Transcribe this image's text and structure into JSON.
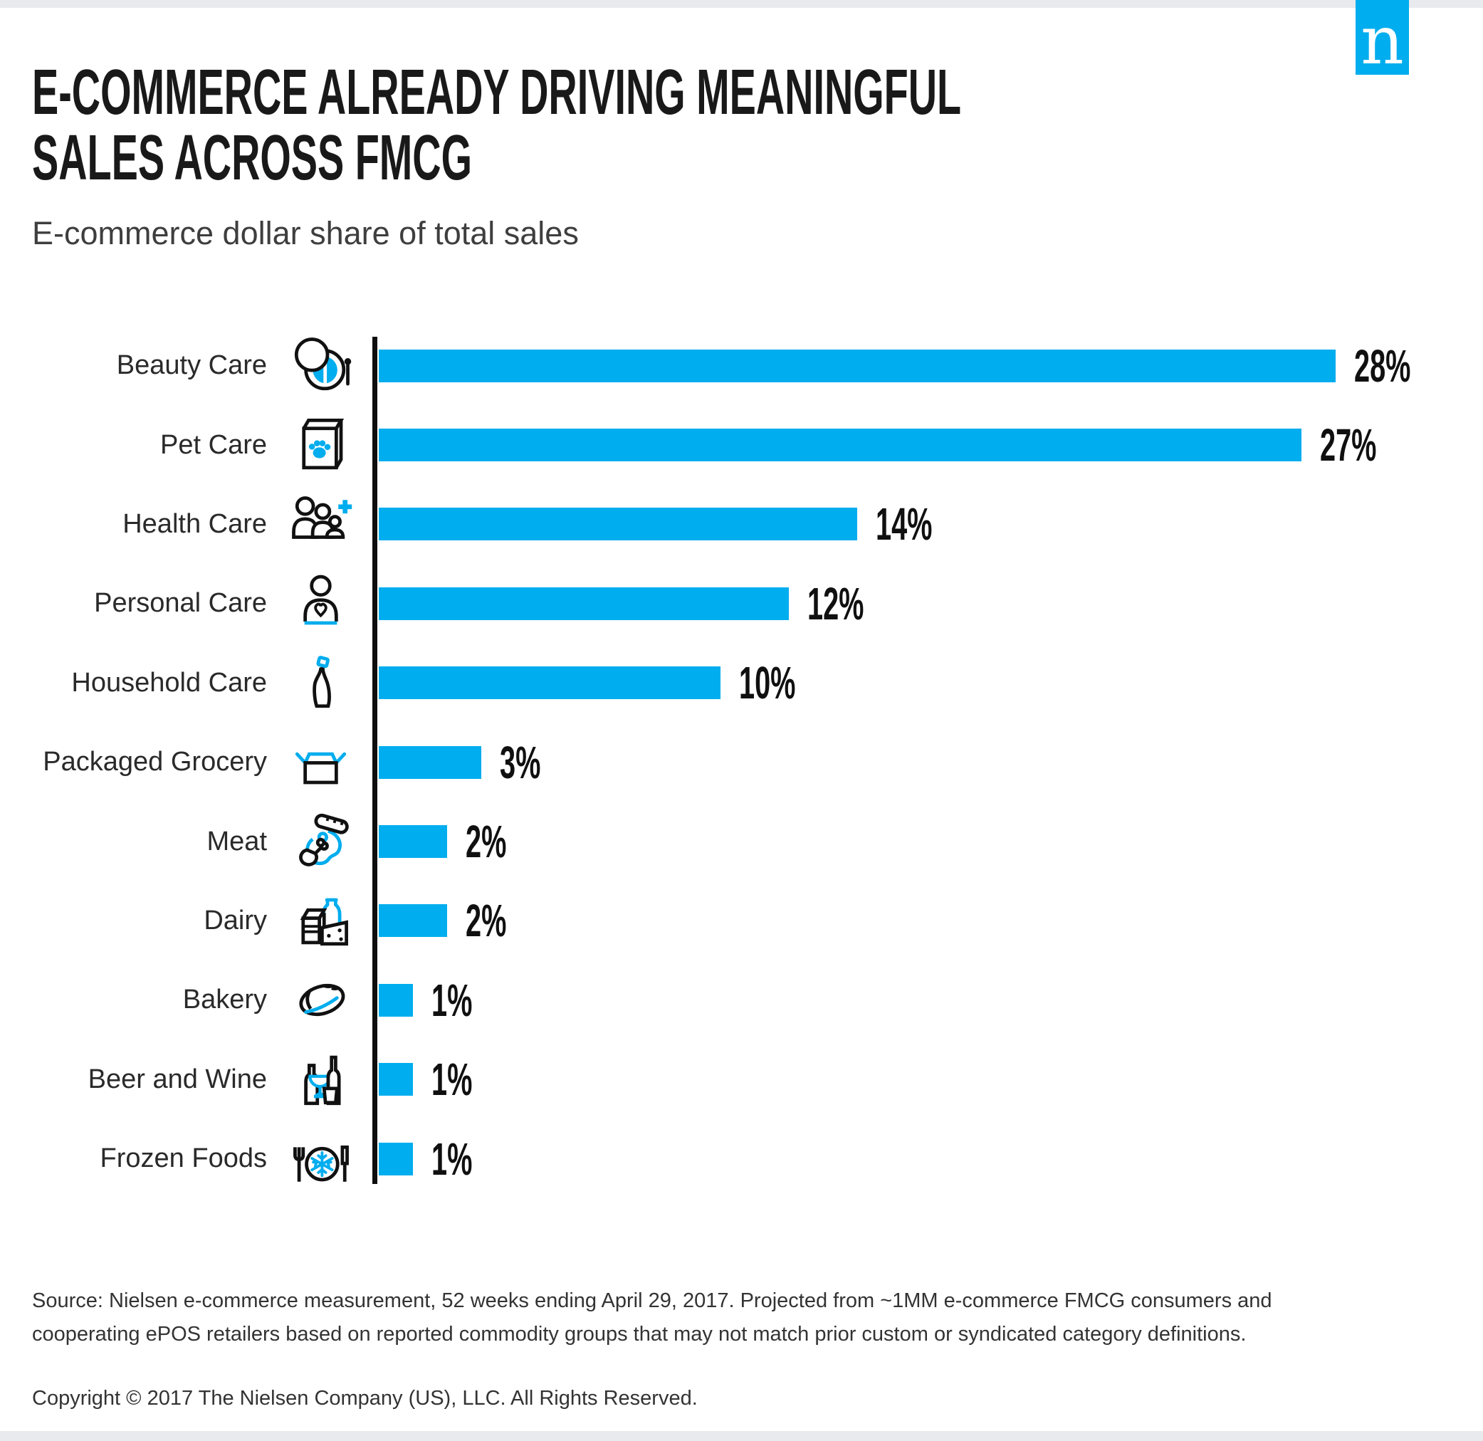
{
  "page": {
    "logo_letter": "n",
    "title_line1": "E-COMMERCE ALREADY DRIVING MEANINGFUL",
    "title_line2": "SALES ACROSS FMCG",
    "subtitle": "E-commerce dollar share of total sales",
    "source_line1": "Source: Nielsen e-commerce measurement, 52 weeks ending April 29, 2017. Projected from ~1MM e-commerce FMCG consumers and",
    "source_line2": "cooperating ePOS retailers based on reported commodity groups that may not match prior custom or syndicated category definitions.",
    "copyright": "Copyright © 2017 The Nielsen Company (US), LLC. All Rights Reserved."
  },
  "chart_data": {
    "type": "bar",
    "orientation": "horizontal",
    "title": "E-COMMERCE ALREADY DRIVING MEANINGFUL SALES ACROSS FMCG",
    "subtitle": "E-commerce dollar share of total sales",
    "unit": "%",
    "categories": [
      "Beauty Care",
      "Pet Care",
      "Health Care",
      "Personal Care",
      "Household Care",
      "Packaged Grocery",
      "Meat",
      "Dairy",
      "Bakery",
      "Beer and Wine",
      "Frozen Foods"
    ],
    "values": [
      28,
      27,
      14,
      12,
      10,
      3,
      2,
      2,
      1,
      1,
      1
    ],
    "labels": [
      "28%",
      "27%",
      "14%",
      "12%",
      "10%",
      "3%",
      "2%",
      "2%",
      "1%",
      "1%",
      "1%"
    ],
    "icons": [
      "makeup-compact-icon",
      "pet-food-bag-icon",
      "family-health-plus-icon",
      "person-heart-icon",
      "cleaning-bottle-icon",
      "open-box-icon",
      "meat-icon",
      "dairy-icon",
      "bread-icon",
      "beer-wine-icon",
      "frozen-plate-icon"
    ],
    "bar_color": "#00ADEE",
    "axis_color": "#0E0E0E",
    "value_label_color": "#101010",
    "xlim": [
      0,
      28
    ],
    "grid": false,
    "legend": "none"
  }
}
